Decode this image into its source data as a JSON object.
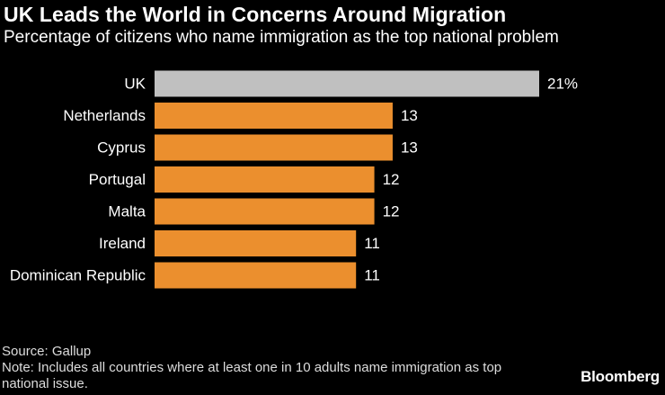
{
  "header": {
    "title": "UK Leads the World in Concerns Around Migration",
    "subtitle": "Percentage of citizens who name immigration as the top national problem"
  },
  "chart_data": {
    "type": "bar",
    "orientation": "horizontal",
    "categories": [
      "UK",
      "Netherlands",
      "Cyprus",
      "Portugal",
      "Malta",
      "Ireland",
      "Dominican Republic"
    ],
    "values": [
      21,
      13,
      13,
      12,
      12,
      11,
      11
    ],
    "value_labels": [
      "21%",
      "13",
      "13",
      "12",
      "12",
      "11",
      "11"
    ],
    "highlight_category": "UK",
    "title": "UK Leads the World in Concerns Around Migration",
    "subtitle": "Percentage of citizens who name immigration as the top national problem",
    "xlabel": "",
    "ylabel": "",
    "xlim": [
      0,
      21
    ],
    "grid": false,
    "colors": {
      "highlight": "#c0c0c0",
      "default": "#eb8f2e"
    }
  },
  "footer": {
    "source": "Source: Gallup",
    "note": "Note: Includes all countries where at least one in 10 adults name immigration as top national issue."
  },
  "brand": "Bloomberg"
}
